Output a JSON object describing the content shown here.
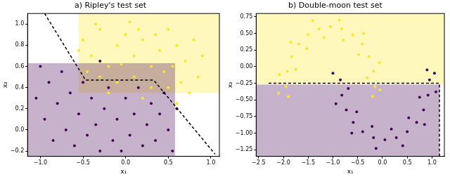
{
  "chart_data": [
    {
      "type": "scatter",
      "title": "a) Ripley's test set",
      "x_label": "x₁",
      "y_label": "x₂",
      "xlim": [
        -1.15,
        1.1
      ],
      "ylim": [
        -0.25,
        1.1
      ],
      "xticks": [
        {
          "value": -1,
          "label": "−1.0"
        },
        {
          "value": -0.5,
          "label": "−0.5"
        },
        {
          "value": 0,
          "label": "0.0"
        },
        0.5,
        {
          "value": 1,
          "label": "1.0"
        }
      ],
      "yticks": [
        {
          "value": -0.2,
          "label": "−0.2"
        },
        {
          "value": 0,
          "label": "0.0"
        },
        0.2,
        0.4,
        0.6,
        0.8,
        {
          "value": 1,
          "label": "1.0"
        }
      ],
      "grid": false,
      "series": [
        {
          "type": "area",
          "color": "#fde725",
          "x": [
            -0.55,
            1.1,
            1.1,
            -0.55
          ],
          "values": [
            0.35,
            0.35,
            1.1,
            1.1
          ]
        },
        {
          "type": "area",
          "color": "#440154",
          "x": [
            -1.15,
            0.58,
            0.58,
            -1.15
          ],
          "values": [
            -0.25,
            -0.25,
            0.63,
            0.63
          ]
        },
        {
          "type": "scatter",
          "marker": "circle",
          "color": "#fde725",
          "x": [
            -0.5,
            -0.4,
            -0.3,
            -0.2,
            -0.1,
            0.0,
            0.1,
            0.2,
            0.3,
            0.4,
            0.5,
            0.6,
            0.7,
            0.8,
            0.85,
            0.65,
            0.5,
            0.3,
            0.1,
            -0.1,
            -0.3,
            -0.45,
            -0.55,
            -0.35,
            0.05,
            0.45,
            0.75,
            0.6,
            0.2,
            -0.2,
            0.9,
            0.35,
            -0.05,
            0.55,
            0.15
          ],
          "values": [
            0.85,
            0.7,
            0.95,
            0.6,
            0.8,
            0.9,
            0.7,
            0.85,
            0.6,
            0.75,
            0.95,
            0.8,
            0.65,
            0.85,
            0.5,
            0.45,
            0.4,
            0.4,
            0.5,
            0.45,
            0.5,
            0.55,
            0.75,
            1.0,
            1.02,
            0.55,
            0.35,
            0.25,
            0.3,
            0.35,
            0.7,
            0.9,
            0.62,
            0.6,
            0.95
          ]
        },
        {
          "type": "scatter",
          "marker": "circle",
          "color": "#440154",
          "x": [
            -1.05,
            -0.95,
            -0.9,
            -0.85,
            -0.8,
            -0.75,
            -0.7,
            -0.65,
            -0.6,
            -0.55,
            -0.5,
            -0.45,
            -0.4,
            -0.35,
            -0.3,
            -0.25,
            -0.2,
            -0.15,
            -0.1,
            0.0,
            0.05,
            0.1,
            0.15,
            0.2,
            0.25,
            0.3,
            0.35,
            0.4,
            0.45,
            0.5,
            0.55,
            -1.0,
            -0.3,
            0.6,
            -0.05
          ],
          "values": [
            0.3,
            0.1,
            0.45,
            -0.1,
            0.25,
            0.55,
            0.0,
            0.35,
            -0.15,
            0.15,
            0.45,
            -0.05,
            0.3,
            0.05,
            -0.2,
            0.2,
            0.4,
            -0.1,
            0.1,
            0.3,
            -0.05,
            0.15,
            0.4,
            -0.15,
            0.05,
            0.25,
            -0.1,
            0.15,
            0.35,
            0.0,
            -0.2,
            0.6,
            0.65,
            0.2,
            -0.2
          ]
        },
        {
          "type": "line",
          "line_style": "dashed",
          "color": "#000000",
          "x": [
            -0.95,
            -0.47,
            0.33,
            1.05
          ],
          "values": [
            1.1,
            0.47,
            0.47,
            -0.23
          ]
        }
      ]
    },
    {
      "type": "scatter",
      "title": "b) Double-moon test set",
      "x_label": "x₁",
      "y_label": "x₂",
      "xlim": [
        -2.55,
        1.25
      ],
      "ylim": [
        -1.35,
        0.8
      ],
      "xticks": [
        {
          "value": -2.5,
          "label": "−2.5"
        },
        {
          "value": -2,
          "label": "−2.0"
        },
        {
          "value": -1.5,
          "label": "−1.5"
        },
        {
          "value": -1,
          "label": "−1.0"
        },
        {
          "value": -0.5,
          "label": "−0.5"
        },
        {
          "value": 0,
          "label": "0.0"
        },
        0.5,
        {
          "value": 1,
          "label": "1.0"
        }
      ],
      "yticks": [
        {
          "value": -1.25,
          "label": "−1.25"
        },
        {
          "value": -1,
          "label": "−1.00"
        },
        {
          "value": -0.75,
          "label": "−0.75"
        },
        {
          "value": -0.5,
          "label": "−0.50"
        },
        {
          "value": -0.25,
          "label": "−0.25"
        },
        {
          "value": 0,
          "label": "0.00"
        },
        0.25,
        {
          "value": 0.5,
          "label": "0.50"
        },
        0.75
      ],
      "grid": false,
      "series": [
        {
          "type": "area",
          "color": "#fde725",
          "x": [
            -2.55,
            1.25,
            1.25,
            -2.55
          ],
          "values": [
            -0.27,
            -0.27,
            0.8,
            0.8
          ]
        },
        {
          "type": "area",
          "color": "#440154",
          "x": [
            -2.55,
            1.15,
            1.15,
            -2.55
          ],
          "values": [
            -1.35,
            -1.35,
            -0.27,
            -0.27
          ]
        },
        {
          "type": "scatter",
          "marker": "circle",
          "color": "#fde725",
          "x": [
            -0.15,
            -0.18,
            -0.27,
            -0.41,
            -0.6,
            -0.82,
            -1.05,
            -1.28,
            -1.5,
            -1.69,
            -1.83,
            -1.92,
            -1.95,
            -0.31,
            -0.48,
            -0.79,
            -1.18,
            -1.53,
            -1.75,
            -0.06,
            -0.38,
            -0.87,
            -1.41,
            -1.85,
            -2.08,
            -2.1,
            -1.9,
            -0.05,
            -0.2
          ],
          "values": [
            -0.3,
            -0.07,
            0.15,
            0.34,
            0.48,
            0.57,
            0.6,
            0.57,
            0.48,
            0.34,
            0.15,
            -0.07,
            -0.3,
            -0.17,
            0.18,
            0.4,
            0.44,
            0.27,
            -0.04,
            0.06,
            0.5,
            0.7,
            0.69,
            0.37,
            -0.12,
            -0.4,
            -0.45,
            -0.35,
            -0.45
          ]
        },
        {
          "type": "scatter",
          "marker": "circle",
          "color": "#440154",
          "x": [
            -0.85,
            -0.82,
            -0.73,
            -0.59,
            -0.4,
            -0.18,
            0.05,
            0.28,
            0.5,
            0.69,
            0.83,
            0.92,
            0.95,
            -0.69,
            -0.52,
            -0.21,
            0.18,
            0.53,
            0.75,
            -0.94,
            -0.62,
            -0.13,
            0.41,
            0.85,
            1.08,
            -1.0,
            1.05,
            0.9
          ],
          "values": [
            -0.2,
            -0.43,
            -0.65,
            -0.84,
            -0.98,
            -1.07,
            -1.1,
            -1.07,
            -0.98,
            -0.84,
            -0.65,
            -0.43,
            -0.2,
            -0.33,
            -0.68,
            -0.9,
            -0.94,
            -0.77,
            -0.46,
            -0.56,
            -1.0,
            -1.23,
            -1.19,
            -0.87,
            -0.38,
            -0.1,
            -0.1,
            -0.05
          ]
        },
        {
          "type": "line",
          "line_style": "dashed",
          "color": "#000000",
          "x": [
            -2.3,
            1.15,
            1.15
          ],
          "values": [
            -0.25,
            -0.25,
            -1.35
          ]
        }
      ]
    }
  ]
}
